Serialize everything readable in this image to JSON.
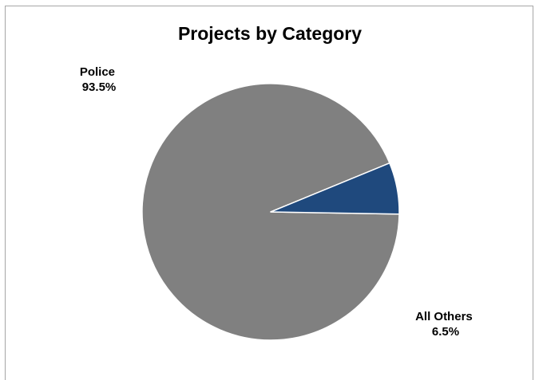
{
  "chart_data": {
    "type": "pie",
    "title": "Projects by Category",
    "slices": [
      {
        "label": "Police",
        "value": 93.5,
        "value_label": "93.5%",
        "color": "#808080"
      },
      {
        "label": "All Others",
        "value": 6.5,
        "value_label": "6.5%",
        "color": "#1f497d"
      }
    ],
    "legend": "none"
  }
}
